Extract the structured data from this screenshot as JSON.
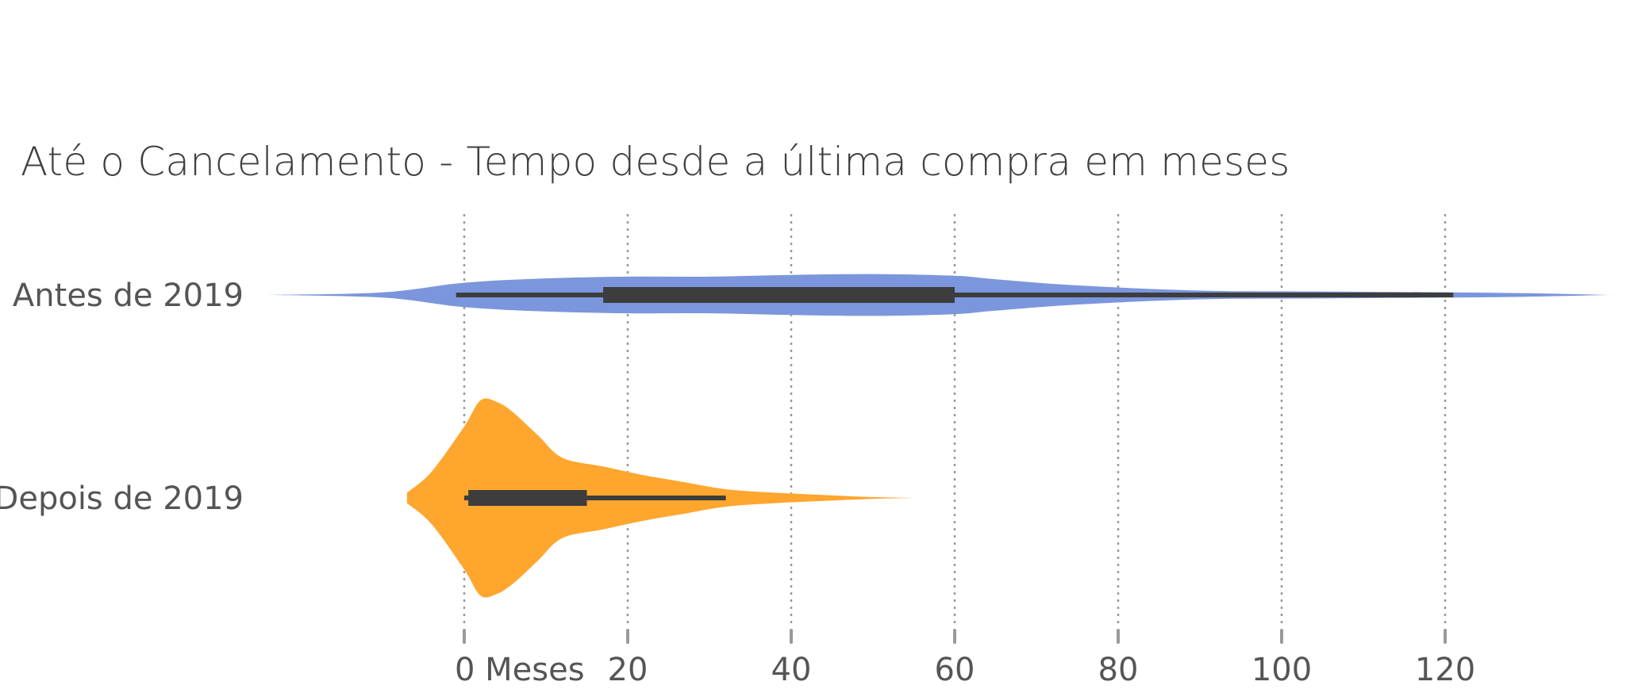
{
  "chart_data": {
    "type": "violin",
    "title": "Até o Cancelamento - Tempo desde a última compra em meses",
    "xlabel": "",
    "ylabel": "",
    "xlim": [
      -9,
      144
    ],
    "x_ticks": [
      0,
      20,
      40,
      60,
      80,
      100,
      120
    ],
    "x_tick_labels": [
      "0 Meses",
      "20",
      "40",
      "60",
      "80",
      "100",
      "120"
    ],
    "grid": "vertical-dotted",
    "series": [
      {
        "category": "Antes de 2019",
        "color": "#7b96dc",
        "range": [
          -24,
          140
        ],
        "whisker": [
          -1,
          121
        ],
        "box": [
          17,
          60
        ],
        "density": [
          [
            -24,
            0
          ],
          [
            -10,
            3
          ],
          [
            0,
            14
          ],
          [
            10,
            19
          ],
          [
            20,
            21
          ],
          [
            30,
            21
          ],
          [
            40,
            23
          ],
          [
            50,
            24
          ],
          [
            60,
            22
          ],
          [
            65,
            18
          ],
          [
            75,
            11
          ],
          [
            90,
            5
          ],
          [
            105,
            4
          ],
          [
            121,
            3
          ],
          [
            130,
            2
          ],
          [
            140,
            0
          ]
        ]
      },
      {
        "category": "Depois de 2019",
        "color": "#ffa62f",
        "range": [
          -7,
          55
        ],
        "whisker": [
          0,
          32
        ],
        "box": [
          0.5,
          15
        ],
        "density": [
          [
            -7,
            6
          ],
          [
            -4,
            30
          ],
          [
            0,
            82
          ],
          [
            2,
            112
          ],
          [
            4,
            110
          ],
          [
            6,
            98
          ],
          [
            9,
            72
          ],
          [
            12,
            46
          ],
          [
            17,
            36
          ],
          [
            22,
            26
          ],
          [
            27,
            18
          ],
          [
            32,
            10
          ],
          [
            38,
            6
          ],
          [
            45,
            3
          ],
          [
            50,
            1
          ],
          [
            55,
            0
          ]
        ]
      }
    ]
  }
}
